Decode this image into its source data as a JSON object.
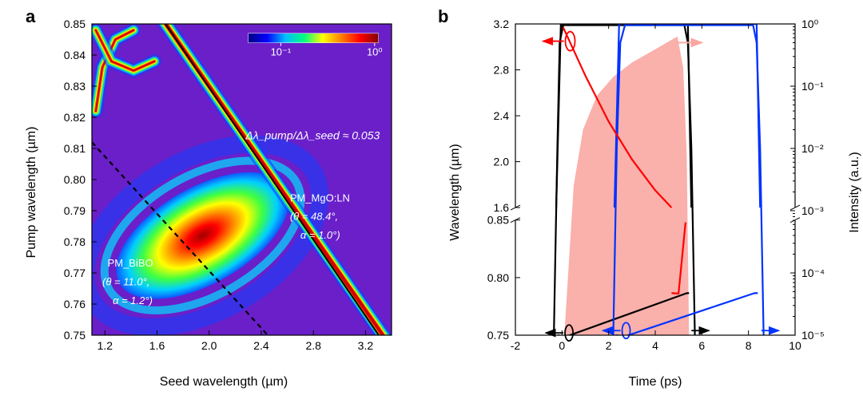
{
  "panel_a": {
    "label": "a",
    "label_fontsize": 22,
    "type": "heatmap",
    "xlabel": "Seed wavelength (µm)",
    "ylabel": "Pump wavelength (µm)",
    "axis_label_fontsize": 16,
    "tick_fontsize": 14,
    "xlim": [
      1.1,
      3.4
    ],
    "ylim": [
      0.75,
      0.85
    ],
    "xticks": [
      1.2,
      1.6,
      2.0,
      2.4,
      2.8,
      3.2
    ],
    "yticks": [
      0.75,
      0.76,
      0.77,
      0.78,
      0.79,
      0.8,
      0.81,
      0.82,
      0.83,
      0.84,
      0.85
    ],
    "background_color": "#6a1fc9",
    "jet_stops": [
      "#000080",
      "#0000ff",
      "#00bfff",
      "#00ff7f",
      "#ffff00",
      "#ff7f00",
      "#ff0000",
      "#800000"
    ],
    "annotation_delta": "Δλ_pump/Δλ_seed ≈ 0.053",
    "line_solid": {
      "color": "#000000",
      "width": 2.0,
      "pts": [
        [
          1.55,
          0.857
        ],
        [
          3.4,
          0.744
        ]
      ]
    },
    "line_dashed": {
      "color": "#000000",
      "width": 2.2,
      "dash": "6,5",
      "pts": [
        [
          1.1,
          0.812
        ],
        [
          2.45,
          0.75
        ]
      ]
    },
    "pm_bibo": {
      "title": "PM_BiBO",
      "theta": "(θ = 11.0°,",
      "alpha": "α = 1.2°)"
    },
    "pm_mgoln": {
      "title": "PM_MgO:LN",
      "theta": "(θ = 48.4°,",
      "alpha": "α = 1.0°)"
    },
    "colorbar": {
      "ticks": [
        "10⁻¹",
        "10⁰"
      ],
      "tick_fontsize": 13,
      "tick_color": "#ffffff"
    }
  },
  "panel_b": {
    "label": "b",
    "label_fontsize": 22,
    "type": "line",
    "xlabel": "Time (ps)",
    "ylabel_left": "Wavelength (µm)",
    "ylabel_right": "Intensity (a.u.)",
    "axis_label_fontsize": 16,
    "tick_fontsize": 14,
    "xlim": [
      -2,
      10
    ],
    "xticks": [
      -2,
      0,
      2,
      4,
      6,
      8,
      10
    ],
    "left_breaks": {
      "lower_range": [
        0.75,
        0.85
      ],
      "upper_range": [
        1.6,
        3.2
      ],
      "lower_ticks": [
        0.75,
        0.8,
        0.85
      ],
      "upper_ticks": [
        1.6,
        2.0,
        2.4,
        2.8,
        3.2
      ]
    },
    "right_log": {
      "min_exp": -5,
      "max_exp": 0,
      "ticks": [
        "10⁻⁵",
        "10⁻⁴",
        "10⁻³",
        "10⁻²",
        "10⁻¹",
        "10⁰"
      ]
    },
    "colors": {
      "black_line": "#000000",
      "blue_line": "#0033ff",
      "red_line": "#ff0000",
      "salmon_fill": "#f9a7a2",
      "salmon_arrow": "#f9a7a2"
    },
    "line_width": 2.2,
    "black_lower": {
      "pts": [
        [
          -0.2,
          0.75
        ],
        [
          0.2,
          0.749
        ],
        [
          5.35,
          0.854
        ],
        [
          5.45,
          0.855
        ]
      ]
    },
    "black_upper": {
      "pts": [
        [
          -0.25,
          1.6
        ],
        [
          -0.05,
          3.2
        ],
        [
          5.4,
          3.2
        ],
        [
          5.55,
          1.6
        ]
      ]
    },
    "black_intensity": {
      "exp_pts": [
        [
          -0.35,
          -5
        ],
        [
          -0.2,
          -2
        ],
        [
          -0.1,
          -0.3
        ],
        [
          0.05,
          -0.02
        ],
        [
          5.25,
          -0.02
        ],
        [
          5.4,
          -0.3
        ],
        [
          5.55,
          -2
        ],
        [
          5.7,
          -5
        ]
      ]
    },
    "blue_lower": {
      "pts": [
        [
          2.3,
          0.75
        ],
        [
          2.7,
          0.749
        ],
        [
          8.25,
          0.854
        ],
        [
          8.4,
          0.855
        ]
      ]
    },
    "blue_upper": {
      "pts": [
        [
          2.25,
          1.6
        ],
        [
          2.45,
          3.2
        ],
        [
          8.35,
          3.2
        ],
        [
          8.5,
          1.6
        ]
      ]
    },
    "blue_intensity": {
      "exp_pts": [
        [
          2.2,
          -5
        ],
        [
          2.35,
          -2
        ],
        [
          2.5,
          -0.3
        ],
        [
          2.7,
          -0.02
        ],
        [
          8.2,
          -0.02
        ],
        [
          8.35,
          -0.3
        ],
        [
          8.5,
          -2
        ],
        [
          8.65,
          -5
        ]
      ]
    },
    "red_line_pts_upper": [
      [
        0.05,
        3.17
      ],
      [
        1.0,
        2.75
      ],
      [
        2.0,
        2.35
      ],
      [
        3.0,
        2.02
      ],
      [
        4.0,
        1.75
      ],
      [
        4.7,
        1.6
      ]
    ],
    "red_line_pts_lower": [
      [
        4.7,
        0.855
      ],
      [
        5.0,
        0.851
      ],
      [
        5.3,
        0.848
      ]
    ],
    "salmon_fill_exp_pts": [
      [
        0.1,
        -5
      ],
      [
        0.5,
        -2.6
      ],
      [
        0.9,
        -1.7
      ],
      [
        1.5,
        -1.15
      ],
      [
        2.2,
        -0.85
      ],
      [
        3.0,
        -0.62
      ],
      [
        3.8,
        -0.45
      ],
      [
        4.4,
        -0.32
      ],
      [
        4.95,
        -0.2
      ],
      [
        5.2,
        -0.7
      ],
      [
        5.35,
        -2.1
      ],
      [
        5.45,
        -5
      ]
    ]
  }
}
